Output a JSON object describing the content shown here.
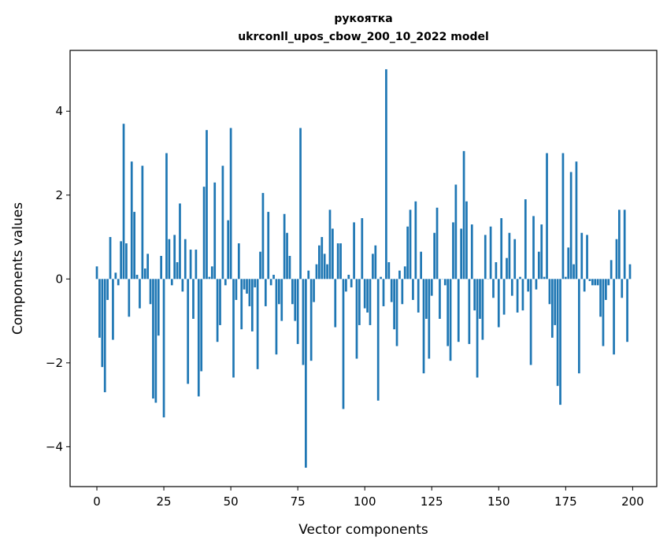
{
  "chart_data": {
    "type": "bar",
    "title": "рукоятка",
    "subtitle": "ukrconll_upos_cbow_200_10_2022 model",
    "xlabel": "Vector components",
    "ylabel": "Components values",
    "xlim": [
      -10,
      209
    ],
    "ylim": [
      -4.95,
      5.45
    ],
    "xticks": [
      0,
      25,
      50,
      75,
      100,
      125,
      150,
      175,
      200
    ],
    "yticks": [
      -4,
      -2,
      0,
      2,
      4
    ],
    "grid": false,
    "bar_color": "#1f77b4",
    "x": [
      0,
      1,
      2,
      3,
      4,
      5,
      6,
      7,
      8,
      9,
      10,
      11,
      12,
      13,
      14,
      15,
      16,
      17,
      18,
      19,
      20,
      21,
      22,
      23,
      24,
      25,
      26,
      27,
      28,
      29,
      30,
      31,
      32,
      33,
      34,
      35,
      36,
      37,
      38,
      39,
      40,
      41,
      42,
      43,
      44,
      45,
      46,
      47,
      48,
      49,
      50,
      51,
      52,
      53,
      54,
      55,
      56,
      57,
      58,
      59,
      60,
      61,
      62,
      63,
      64,
      65,
      66,
      67,
      68,
      69,
      70,
      71,
      72,
      73,
      74,
      75,
      76,
      77,
      78,
      79,
      80,
      81,
      82,
      83,
      84,
      85,
      86,
      87,
      88,
      89,
      90,
      91,
      92,
      93,
      94,
      95,
      96,
      97,
      98,
      99,
      100,
      101,
      102,
      103,
      104,
      105,
      106,
      107,
      108,
      109,
      110,
      111,
      112,
      113,
      114,
      115,
      116,
      117,
      118,
      119,
      120,
      121,
      122,
      123,
      124,
      125,
      126,
      127,
      128,
      129,
      130,
      131,
      132,
      133,
      134,
      135,
      136,
      137,
      138,
      139,
      140,
      141,
      142,
      143,
      144,
      145,
      146,
      147,
      148,
      149,
      150,
      151,
      152,
      153,
      154,
      155,
      156,
      157,
      158,
      159,
      160,
      161,
      162,
      163,
      164,
      165,
      166,
      167,
      168,
      169,
      170,
      171,
      172,
      173,
      174,
      175,
      176,
      177,
      178,
      179,
      180,
      181,
      182,
      183,
      184,
      185,
      186,
      187,
      188,
      189,
      190,
      191,
      192,
      193,
      194,
      195,
      196,
      197,
      198,
      199
    ],
    "values": [
      0.3,
      -1.4,
      -2.1,
      -2.7,
      -0.5,
      1.0,
      -1.45,
      0.15,
      -0.15,
      0.9,
      3.7,
      0.85,
      -0.9,
      2.8,
      1.6,
      0.1,
      -0.7,
      2.7,
      0.25,
      0.6,
      -0.6,
      -2.85,
      -2.95,
      -1.35,
      0.55,
      -3.3,
      3.0,
      0.95,
      -0.15,
      1.05,
      0.4,
      1.8,
      -0.3,
      0.95,
      -2.5,
      0.7,
      -0.95,
      0.7,
      -2.8,
      -2.2,
      2.2,
      3.55,
      0.05,
      0.3,
      2.3,
      -1.5,
      -1.1,
      2.7,
      -0.15,
      1.4,
      3.6,
      -2.35,
      -0.5,
      0.85,
      -1.2,
      -0.25,
      -0.35,
      -0.65,
      -1.25,
      -0.2,
      -2.15,
      0.65,
      2.05,
      -0.65,
      1.6,
      -0.15,
      0.1,
      -1.8,
      -0.6,
      -1.0,
      1.55,
      1.1,
      0.55,
      -0.6,
      -1.0,
      -1.55,
      3.6,
      -2.05,
      -4.5,
      0.2,
      -1.95,
      -0.55,
      0.35,
      0.8,
      1.0,
      0.6,
      0.35,
      1.65,
      1.2,
      -1.15,
      0.85,
      0.85,
      -3.1,
      -0.3,
      0.1,
      -0.2,
      1.35,
      -1.9,
      -1.1,
      1.45,
      -0.7,
      -0.8,
      -1.1,
      0.6,
      0.8,
      -2.9,
      0.05,
      -0.65,
      5.0,
      0.4,
      -0.55,
      -1.2,
      -1.6,
      0.2,
      -0.6,
      0.3,
      1.25,
      1.65,
      -0.5,
      1.85,
      -0.8,
      0.65,
      -2.25,
      -0.95,
      -1.9,
      -0.4,
      1.1,
      1.7,
      -0.95,
      0.0,
      -0.15,
      -1.6,
      -1.95,
      1.35,
      2.25,
      -1.5,
      1.2,
      3.05,
      1.85,
      -1.55,
      1.3,
      -0.75,
      -2.35,
      -0.95,
      -1.45,
      1.05,
      0.0,
      1.25,
      -0.45,
      0.4,
      -1.15,
      1.45,
      -0.85,
      0.5,
      1.1,
      -0.4,
      0.95,
      -0.8,
      0.05,
      -0.75,
      1.9,
      -0.3,
      -2.05,
      1.5,
      -0.25,
      0.65,
      1.3,
      0.05,
      3.0,
      -0.6,
      -1.4,
      -1.1,
      -2.55,
      -3.0,
      3.0,
      0.05,
      0.75,
      2.55,
      0.35,
      2.8,
      -2.25,
      1.1,
      -0.3,
      1.05,
      -0.05,
      -0.15,
      -0.15,
      -0.15,
      -0.9,
      -1.6,
      -0.5,
      -0.15,
      0.45,
      -1.8,
      0.95,
      1.65,
      -0.45,
      1.65,
      -1.5,
      0.35
    ]
  }
}
